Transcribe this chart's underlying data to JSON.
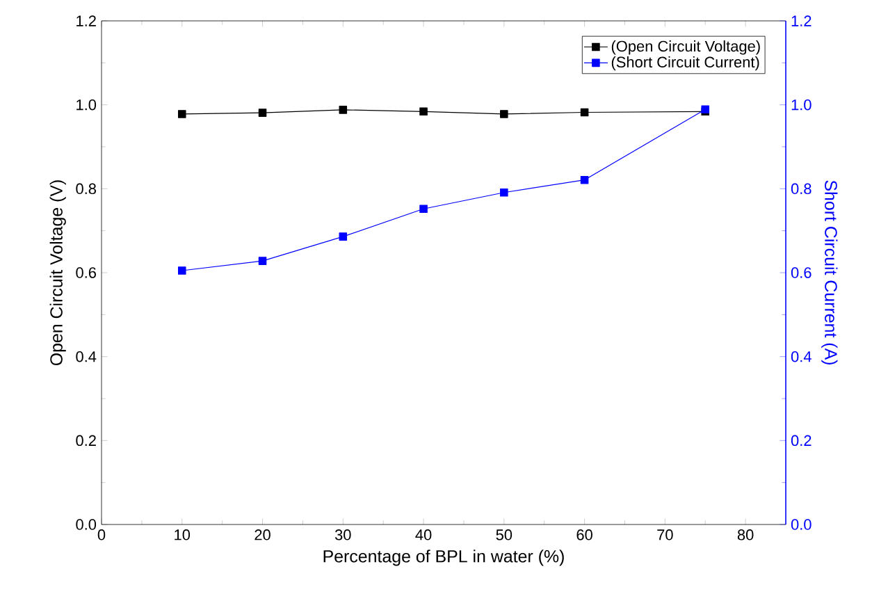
{
  "chart_data": {
    "type": "line",
    "xlabel": "Percentage of BPL in water (%)",
    "ylabel": "Open Circuit Voltage (V)",
    "y2label": "Short Circuit Current (A)",
    "x": [
      10,
      20,
      30,
      40,
      50,
      60,
      75
    ],
    "series": [
      {
        "name": "(Open Circuit Voltage)",
        "color": "#000000",
        "values": [
          0.978,
          0.981,
          0.988,
          0.984,
          0.978,
          0.982,
          0.984
        ]
      },
      {
        "name": "(Short Circuit Current)",
        "color": "#0000ff",
        "axis": "y2",
        "values": [
          0.605,
          0.628,
          0.686,
          0.752,
          0.791,
          0.821,
          0.989
        ]
      }
    ],
    "xlim": [
      0,
      85
    ],
    "xticks": [
      0,
      10,
      20,
      30,
      40,
      50,
      60,
      70,
      80
    ],
    "ylim": [
      0,
      1.2
    ],
    "yticks": [
      {
        "value": 0,
        "label": "0.0"
      },
      0.2,
      0.4,
      0.6,
      0.8,
      {
        "value": 1,
        "label": "1.0"
      },
      1.2
    ],
    "y2lim": [
      0,
      1.2
    ],
    "y2ticks": [
      {
        "value": 0,
        "label": "0.0"
      },
      0.2,
      0.4,
      0.6,
      0.8,
      {
        "value": 1,
        "label": "1.0"
      },
      1.2
    ],
    "grid": false,
    "legend": "top right",
    "marker": "square",
    "line_style": "solid"
  }
}
